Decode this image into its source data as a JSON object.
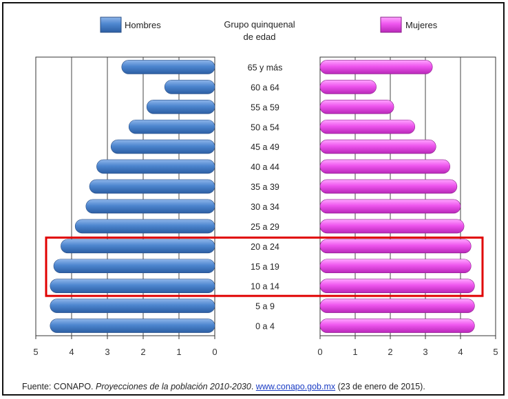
{
  "chart_data": {
    "type": "bar",
    "orientation": "horizontal-pyramid",
    "center_title_line1": "Grupo quinquenal",
    "center_title_line2": "de edad",
    "legend": {
      "left": "Hombres",
      "right": "Mujeres"
    },
    "colors": {
      "men": "#4d86cf",
      "women": "#ee55ee",
      "highlight": "#e00000"
    },
    "categories": [
      "65 y más",
      "60 a 64",
      "55 a 59",
      "50 a 54",
      "45 a 49",
      "40 a 44",
      "35 a 39",
      "30 a 34",
      "25 a 29",
      "20 a 24",
      "15 a 19",
      "10 a 14",
      "5 a 9",
      "0 a 4"
    ],
    "series": [
      {
        "name": "Hombres",
        "values": [
          2.6,
          1.4,
          1.9,
          2.4,
          2.9,
          3.3,
          3.5,
          3.6,
          3.9,
          4.3,
          4.5,
          4.6,
          4.6,
          4.6
        ]
      },
      {
        "name": "Mujeres",
        "values": [
          3.2,
          1.6,
          2.1,
          2.7,
          3.3,
          3.7,
          3.9,
          4.0,
          4.1,
          4.3,
          4.3,
          4.4,
          4.4,
          4.4
        ]
      }
    ],
    "xlim_left": [
      0,
      5
    ],
    "xlim_right": [
      0,
      5
    ],
    "left_ticks": [
      "5",
      "4",
      "3",
      "2",
      "1",
      "0"
    ],
    "right_ticks": [
      "0",
      "1",
      "2",
      "3",
      "4",
      "5"
    ],
    "highlighted_categories": [
      "20 a 24",
      "15 a 19",
      "10 a 14"
    ],
    "grid": true
  },
  "source": {
    "prefix": "Fuente: CONAPO. ",
    "title": "Proyecciones de la población 2010-2030",
    "separator": ". ",
    "link": "www.conapo.gob.mx",
    "suffix": " (23 de enero de 2015)."
  }
}
